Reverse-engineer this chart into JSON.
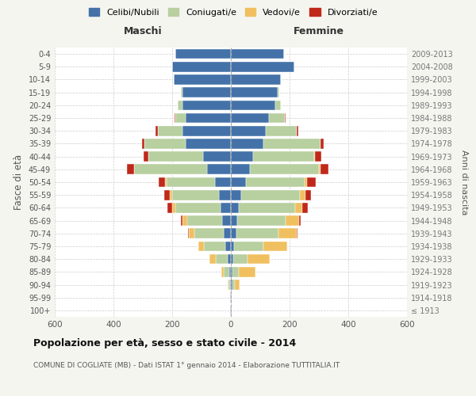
{
  "age_groups": [
    "100+",
    "95-99",
    "90-94",
    "85-89",
    "80-84",
    "75-79",
    "70-74",
    "65-69",
    "60-64",
    "55-59",
    "50-54",
    "45-49",
    "40-44",
    "35-39",
    "30-34",
    "25-29",
    "20-24",
    "15-19",
    "10-14",
    "5-9",
    "0-4"
  ],
  "birth_years": [
    "≤ 1913",
    "1914-1918",
    "1919-1923",
    "1924-1928",
    "1929-1933",
    "1934-1938",
    "1939-1943",
    "1944-1948",
    "1949-1953",
    "1954-1958",
    "1959-1963",
    "1964-1968",
    "1969-1973",
    "1974-1978",
    "1979-1983",
    "1984-1988",
    "1989-1993",
    "1994-1998",
    "1999-2003",
    "2004-2008",
    "2009-2013"
  ],
  "male": {
    "celibi": [
      2,
      2,
      4,
      6,
      12,
      18,
      25,
      30,
      35,
      40,
      55,
      80,
      95,
      155,
      165,
      155,
      165,
      165,
      195,
      200,
      190
    ],
    "coniugati": [
      0,
      1,
      5,
      18,
      40,
      75,
      100,
      120,
      155,
      160,
      165,
      250,
      185,
      140,
      85,
      35,
      15,
      5,
      0,
      0,
      0
    ],
    "vedovi": [
      0,
      0,
      2,
      8,
      20,
      18,
      18,
      15,
      10,
      8,
      5,
      0,
      0,
      0,
      0,
      0,
      0,
      0,
      0,
      0,
      0
    ],
    "divorziati": [
      0,
      0,
      0,
      0,
      0,
      0,
      3,
      5,
      15,
      18,
      22,
      25,
      18,
      8,
      8,
      3,
      0,
      0,
      0,
      0,
      0
    ]
  },
  "female": {
    "nubili": [
      2,
      2,
      5,
      6,
      8,
      12,
      18,
      22,
      28,
      35,
      50,
      65,
      75,
      110,
      120,
      130,
      150,
      160,
      170,
      215,
      180
    ],
    "coniugate": [
      0,
      1,
      8,
      22,
      50,
      100,
      145,
      165,
      190,
      200,
      200,
      235,
      210,
      195,
      105,
      55,
      20,
      5,
      0,
      0,
      0
    ],
    "vedove": [
      0,
      1,
      18,
      55,
      75,
      80,
      60,
      45,
      25,
      18,
      10,
      5,
      2,
      0,
      0,
      0,
      0,
      0,
      0,
      0,
      0
    ],
    "divorziate": [
      0,
      0,
      0,
      0,
      0,
      0,
      5,
      5,
      20,
      20,
      28,
      28,
      22,
      10,
      5,
      2,
      0,
      0,
      0,
      0,
      0
    ]
  },
  "colors": {
    "celibi": "#4472a8",
    "coniugati": "#b8cfa0",
    "vedovi": "#f0c060",
    "divorziati": "#c0281a"
  },
  "xlim": 600,
  "title": "Popolazione per età, sesso e stato civile - 2014",
  "subtitle": "COMUNE DI COGLIATE (MB) - Dati ISTAT 1° gennaio 2014 - Elaborazione TUTTITALIA.IT",
  "ylabel_left": "Fasce di età",
  "ylabel_right": "Anni di nascita",
  "xlabel_left": "Maschi",
  "xlabel_right": "Femmine",
  "legend_labels": [
    "Celibi/Nubili",
    "Coniugati/e",
    "Vedovi/e",
    "Divorziati/e"
  ],
  "background_color": "#f5f5f0",
  "bar_background": "#ffffff"
}
